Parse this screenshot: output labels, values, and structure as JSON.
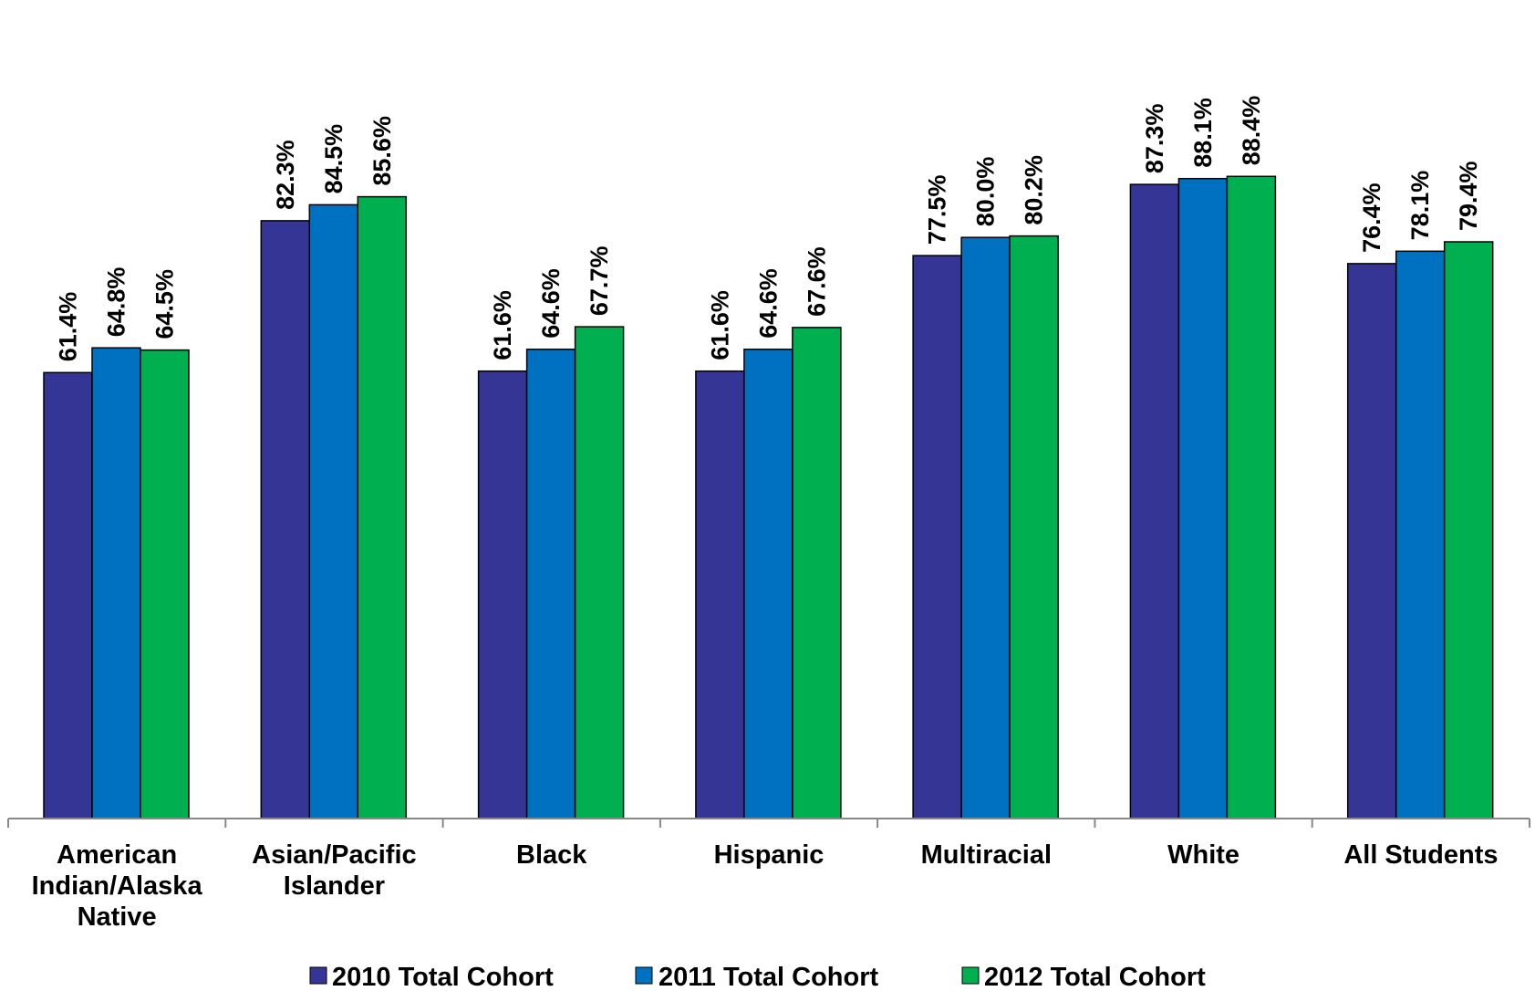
{
  "chart_data": {
    "type": "bar",
    "title": "",
    "xlabel": "",
    "ylabel": "",
    "ylim": [
      0,
      100
    ],
    "grid": false,
    "legend_position": "bottom",
    "categories": [
      [
        "American",
        "Indian/Alaska",
        "Native"
      ],
      [
        "Asian/Pacific",
        "Islander"
      ],
      [
        "Black"
      ],
      [
        "Hispanic"
      ],
      [
        "Multiracial"
      ],
      [
        "White"
      ],
      [
        "All Students"
      ]
    ],
    "series": [
      {
        "name": "2010 Total Cohort",
        "color": "#353596",
        "values": [
          61.4,
          82.3,
          61.6,
          61.6,
          77.5,
          87.3,
          76.4
        ],
        "labels": [
          "61.4%",
          "82.3%",
          "61.6%",
          "61.6%",
          "77.5%",
          "87.3%",
          "76.4%"
        ]
      },
      {
        "name": "2011 Total Cohort",
        "color": "#0070C0",
        "values": [
          64.8,
          84.5,
          64.6,
          64.6,
          80.0,
          88.1,
          78.1
        ],
        "labels": [
          "64.8%",
          "84.5%",
          "64.6%",
          "64.6%",
          "80.0%",
          "88.1%",
          "78.1%"
        ]
      },
      {
        "name": "2012 Total Cohort",
        "color": "#00B050",
        "values": [
          64.5,
          85.6,
          67.7,
          67.6,
          80.2,
          88.4,
          79.4
        ],
        "labels": [
          "64.5%",
          "85.6%",
          "67.7%",
          "67.6%",
          "80.2%",
          "88.4%",
          "79.4%"
        ]
      }
    ]
  }
}
